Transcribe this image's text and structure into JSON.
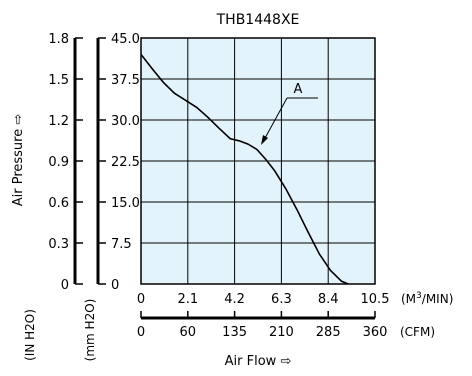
{
  "chart_data": {
    "type": "line",
    "title": "THB1448XE",
    "series": [
      {
        "name": "A",
        "x": [
          0.0,
          0.5,
          1.0,
          1.5,
          2.0,
          2.5,
          3.0,
          3.5,
          4.0,
          4.4,
          4.8,
          5.2,
          5.6,
          6.0,
          6.5,
          7.0,
          7.5,
          8.0,
          8.5,
          9.0,
          9.3
        ],
        "y": [
          42.0,
          39.4,
          36.9,
          34.9,
          33.6,
          32.3,
          30.5,
          28.5,
          26.6,
          26.2,
          25.6,
          24.6,
          22.8,
          20.7,
          17.4,
          13.6,
          9.5,
          5.5,
          2.5,
          0.5,
          0.0
        ]
      }
    ],
    "annotation": "A",
    "grid": true,
    "x_primary": {
      "unit_pre": "(M",
      "unit_sup": "3",
      "unit_post": "/MIN)",
      "ticks": [
        "0",
        "2.1",
        "4.2",
        "6.3",
        "8.4",
        "10.5"
      ],
      "range": [
        0,
        10.5
      ]
    },
    "x_secondary": {
      "unit": "(CFM)",
      "ticks": [
        "0",
        "60",
        "135",
        "210",
        "285",
        "360"
      ]
    },
    "xlabel": "Air Flow ⇨",
    "y_primary": {
      "unit": "(mm H2O)",
      "ticks": [
        "0",
        "7.5",
        "15.0",
        "22.5",
        "30.0",
        "37.5",
        "45.0"
      ],
      "range": [
        0,
        45
      ]
    },
    "y_secondary": {
      "unit": "(IN H2O)",
      "ticks": [
        "0",
        "0.3",
        "0.6",
        "0.9",
        "1.2",
        "1.5",
        "1.8"
      ]
    },
    "ylabel": "Air Pressure ⇨",
    "plot_background": "#e3f3fc",
    "line_color": "#000000"
  }
}
